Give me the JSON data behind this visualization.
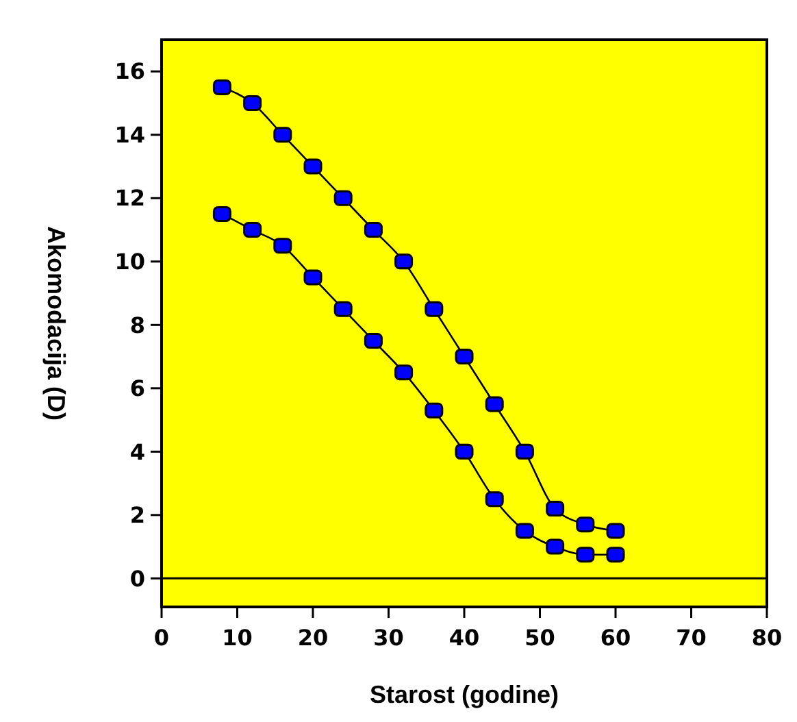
{
  "chart_data": {
    "type": "line",
    "xlabel": "Starost (godine)",
    "ylabel": "Akomodacija (D)",
    "x": [
      8,
      12,
      16,
      20,
      24,
      28,
      32,
      36,
      40,
      44,
      48,
      52,
      56,
      60
    ],
    "series": [
      {
        "color": "#0000ff",
        "values": [
          15.5,
          15,
          14,
          13,
          12,
          11,
          10,
          8.5,
          7,
          5.5,
          4,
          2.2,
          1.7,
          1.5
        ]
      },
      {
        "color": "#0000ff",
        "values": [
          11.5,
          11,
          10.5,
          9.5,
          8.5,
          7.5,
          6.5,
          5.3,
          4,
          2.5,
          1.5,
          1,
          0.75,
          0.75
        ]
      }
    ],
    "xlim": [
      0,
      80
    ],
    "xticks": [
      0,
      10,
      20,
      30,
      40,
      50,
      60,
      70,
      80
    ],
    "ylim": [
      -0.9,
      17
    ],
    "yticks": [
      0,
      2,
      4,
      6,
      8,
      10,
      12,
      14,
      16
    ],
    "ref_lines": [
      {
        "axis": "y",
        "value": 0,
        "color": "#000000"
      }
    ],
    "marker": "square",
    "line_style": "solid"
  }
}
